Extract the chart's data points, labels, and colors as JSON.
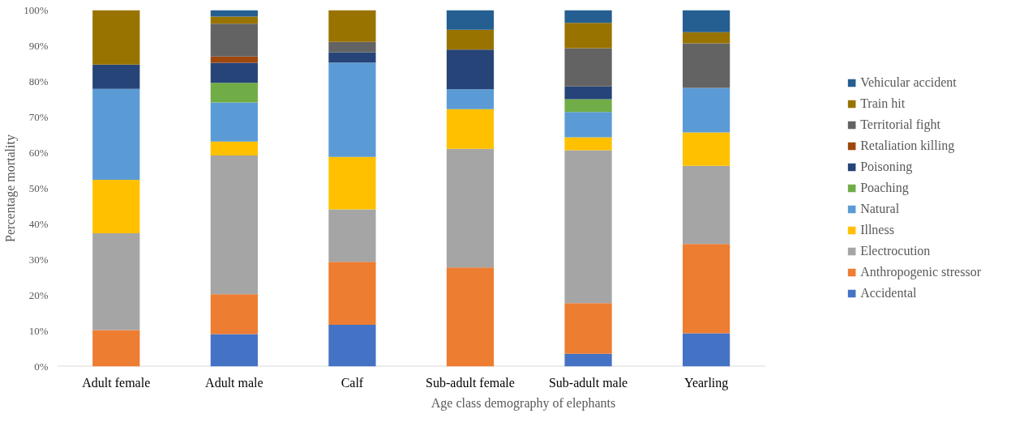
{
  "chart_data": {
    "type": "bar",
    "stacked": true,
    "xlabel": "Age class demography of elephants",
    "ylabel": "Percentage mortality",
    "categories": [
      "Adult female",
      "Adult male",
      "Calf",
      "Sub-adult female",
      "Sub-adult male",
      "Yearling"
    ],
    "ylim": [
      0,
      100
    ],
    "yticks": [
      {
        "value": 0,
        "label": "0%"
      },
      {
        "value": 10,
        "label": "10%"
      },
      {
        "value": 20,
        "label": "20%"
      },
      {
        "value": 30,
        "label": "30%"
      },
      {
        "value": 40,
        "label": "40%"
      },
      {
        "value": 50,
        "label": "50%"
      },
      {
        "value": 60,
        "label": "60%"
      },
      {
        "value": 70,
        "label": "70%"
      },
      {
        "value": 80,
        "label": "80%"
      },
      {
        "value": 90,
        "label": "90%"
      },
      {
        "value": 100,
        "label": "100%"
      }
    ],
    "grid": false,
    "legend": "right",
    "series": [
      {
        "name": "Accidental",
        "color": "#4472c4",
        "values": [
          0,
          9.1,
          11.7,
          0,
          3.6,
          9.3
        ]
      },
      {
        "name": "Anthropogenic stressor",
        "color": "#ed7d31",
        "values": [
          10.2,
          11.2,
          17.7,
          27.8,
          14.2,
          25.1
        ]
      },
      {
        "name": "Electrocution",
        "color": "#a5a5a5",
        "values": [
          27.2,
          38.9,
          14.7,
          33.3,
          42.9,
          21.9
        ]
      },
      {
        "name": "Illness",
        "color": "#ffc000",
        "values": [
          15.0,
          3.9,
          14.7,
          11.1,
          3.6,
          9.4
        ]
      },
      {
        "name": "Natural",
        "color": "#5b9bd5",
        "values": [
          25.5,
          11.0,
          26.5,
          5.6,
          7.1,
          12.5
        ]
      },
      {
        "name": "Poaching",
        "color": "#70ad47",
        "values": [
          0,
          5.5,
          0,
          0,
          3.6,
          0
        ]
      },
      {
        "name": "Poisoning",
        "color": "#264478",
        "values": [
          6.8,
          5.6,
          2.9,
          11.1,
          3.6,
          0
        ]
      },
      {
        "name": "Retaliation killing",
        "color": "#9e480e",
        "values": [
          0,
          1.8,
          0,
          0,
          0,
          0
        ]
      },
      {
        "name": "Territorial fight",
        "color": "#636363",
        "values": [
          0,
          9.2,
          2.9,
          0,
          10.7,
          12.5
        ]
      },
      {
        "name": "Train hit",
        "color": "#997300",
        "values": [
          15.3,
          2.0,
          8.9,
          5.6,
          7.1,
          3.1
        ]
      },
      {
        "name": "Vehicular accident",
        "color": "#255e91",
        "values": [
          0,
          1.8,
          0,
          5.5,
          3.6,
          6.2
        ]
      }
    ]
  }
}
